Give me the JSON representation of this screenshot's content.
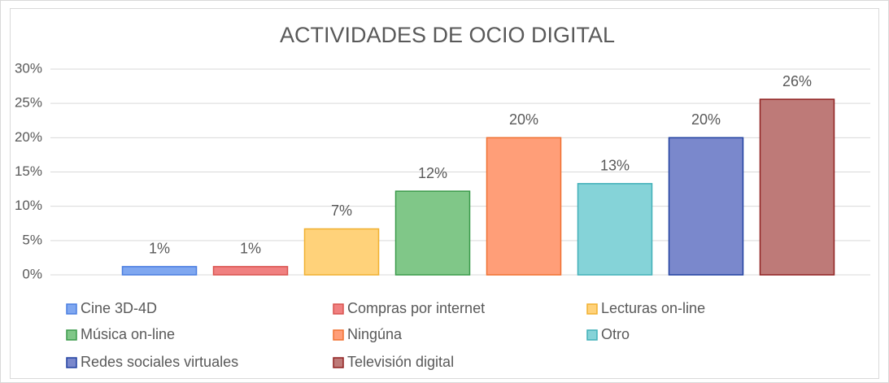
{
  "chart_data": {
    "type": "bar",
    "title": "ACTIVIDADES DE OCIO DIGITAL",
    "categories": [
      null
    ],
    "series": [
      {
        "name": "Cine 3D-4D",
        "color": "#7fa7f0",
        "edgecolor": "#4a7ee0",
        "values": [
          1.2
        ],
        "value_labels": [
          "1%"
        ]
      },
      {
        "name": "Compras por internet",
        "color": "#f08080",
        "edgecolor": "#d9534f",
        "values": [
          1.2
        ],
        "value_labels": [
          "1%"
        ]
      },
      {
        "name": "Lecturas on-line",
        "color": "#ffd27a",
        "edgecolor": "#f0b030",
        "values": [
          6.7
        ],
        "value_labels": [
          "7%"
        ]
      },
      {
        "name": "Música on-line",
        "color": "#80c788",
        "edgecolor": "#3a9a4a",
        "values": [
          12.2
        ],
        "value_labels": [
          "12%"
        ]
      },
      {
        "name": "Ningúna",
        "color": "#ff9e78",
        "edgecolor": "#f07030",
        "values": [
          20
        ],
        "value_labels": [
          "20%"
        ]
      },
      {
        "name": "Otro",
        "color": "#85d3d8",
        "edgecolor": "#40b0b8",
        "values": [
          13.3
        ],
        "value_labels": [
          "13%"
        ]
      },
      {
        "name": "Redes sociales virtuales",
        "color": "#7a88cc",
        "edgecolor": "#2040a0",
        "values": [
          20
        ],
        "value_labels": [
          "20%"
        ]
      },
      {
        "name": "Televisión digital",
        "color": "#be7a78",
        "edgecolor": "#902020",
        "values": [
          25.6
        ],
        "value_labels": [
          "26%"
        ]
      }
    ],
    "ylim": [
      0,
      30
    ],
    "yticks": [
      {
        "value": 0,
        "label": "0%"
      },
      {
        "value": 5,
        "label": "5%"
      },
      {
        "value": 10,
        "label": "10%"
      },
      {
        "value": 15,
        "label": "15%"
      },
      {
        "value": 20,
        "label": "20%"
      },
      {
        "value": 25,
        "label": "25%"
      },
      {
        "value": 30,
        "label": "30%"
      }
    ],
    "grid": true,
    "legend": "bottom"
  }
}
